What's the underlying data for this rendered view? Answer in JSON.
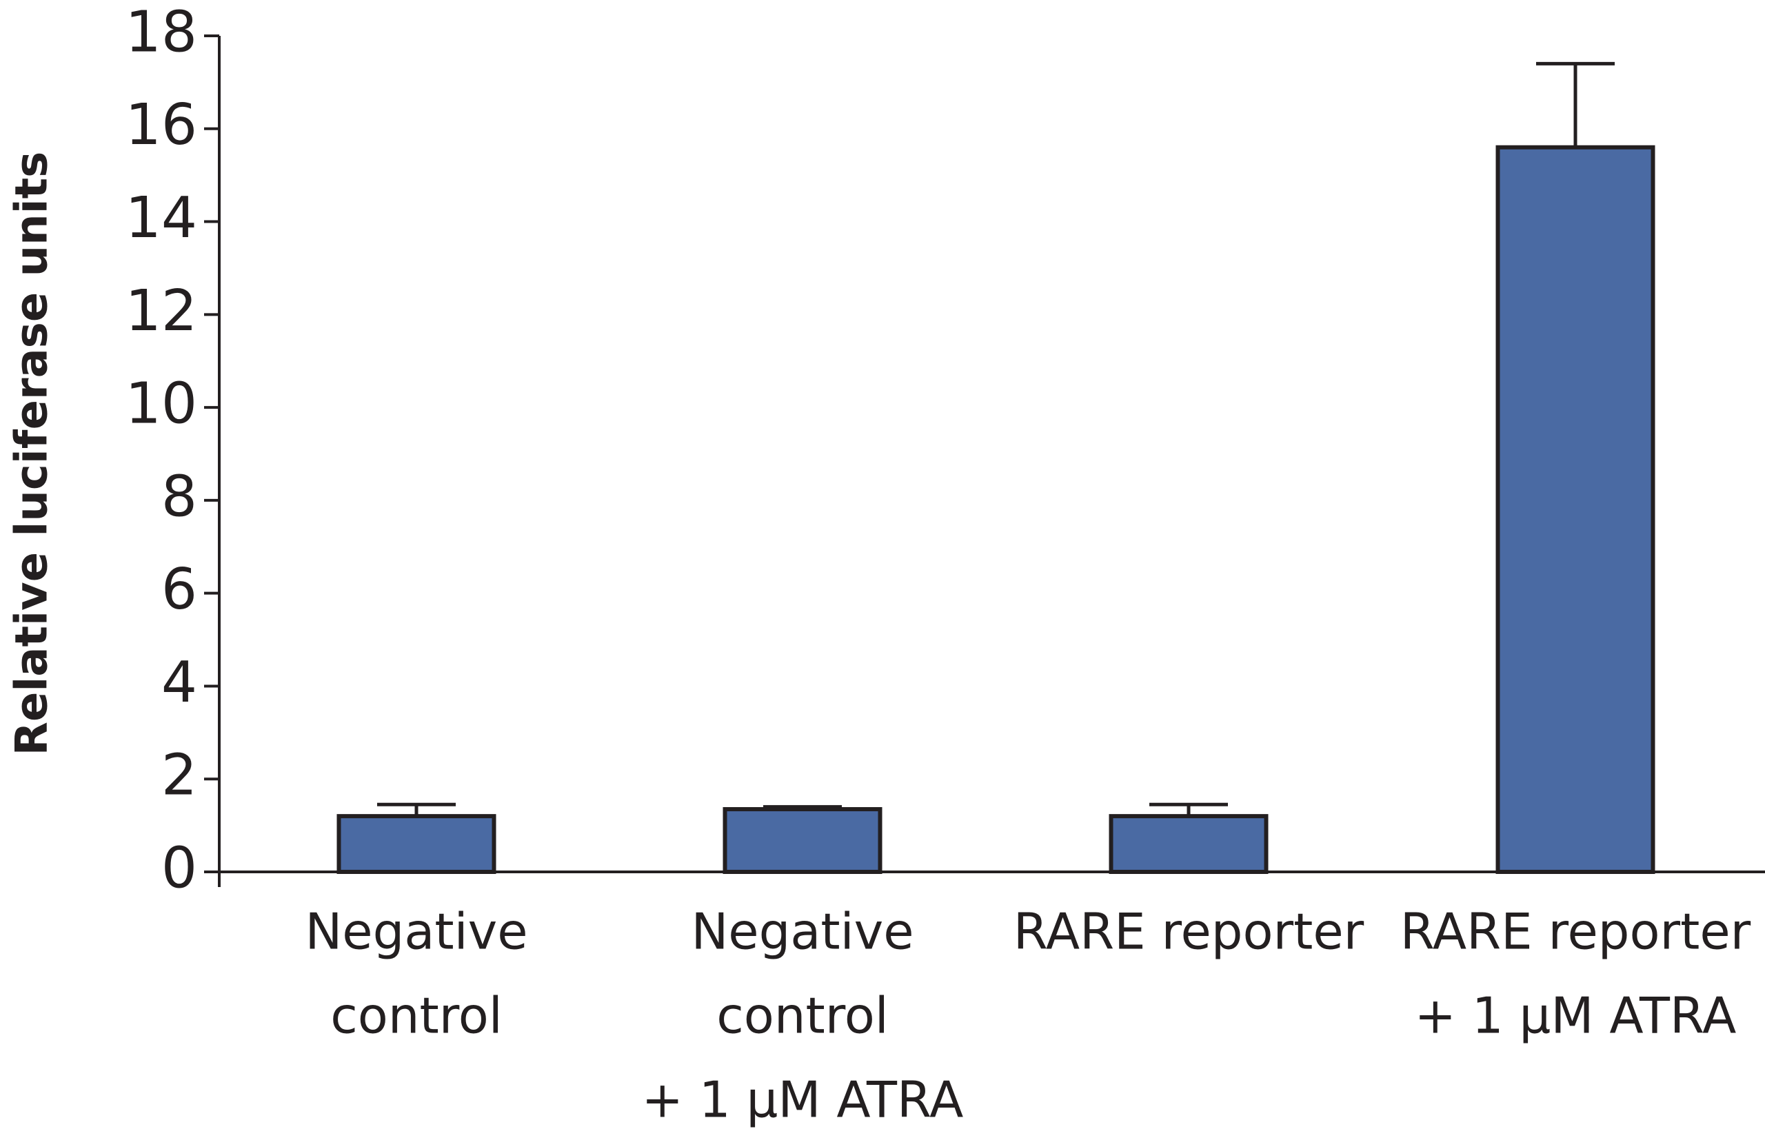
{
  "chart_data": {
    "type": "bar",
    "y_label": "Relative luciferase units",
    "categories": [
      [
        "Negative",
        "control"
      ],
      [
        "Negative",
        "control",
        "+ 1 µM ATRA"
      ],
      [
        "RARE reporter"
      ],
      [
        "RARE reporter",
        "+ 1 µM ATRA"
      ]
    ],
    "values": [
      1.2,
      1.35,
      1.2,
      15.6
    ],
    "errors": [
      0.25,
      0.05,
      0.25,
      1.8
    ],
    "color": "#4a6aa3",
    "ylim": [
      0,
      18
    ],
    "yticks": [
      0,
      2,
      4,
      6,
      8,
      10,
      12,
      14,
      16,
      18
    ],
    "grid": false
  }
}
